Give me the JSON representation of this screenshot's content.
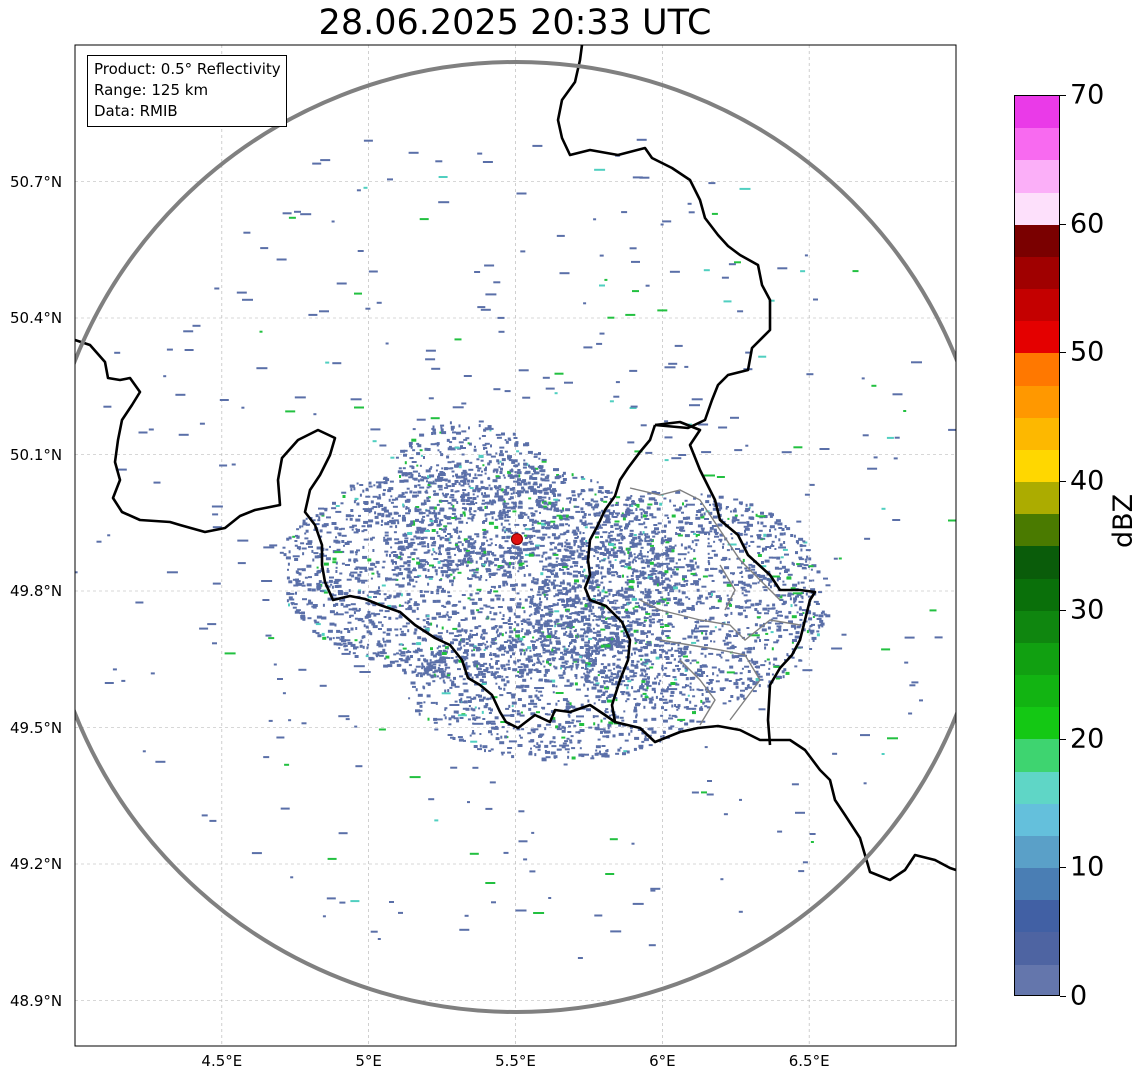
{
  "title": "28.06.2025 20:33 UTC",
  "info": {
    "product": "Product: 0.5° Reflectivity",
    "range": "Range: 125 km",
    "data": "Data: RMIB"
  },
  "map": {
    "lon_range": [
      4.0,
      7.0
    ],
    "lat_range": [
      48.8,
      51.0
    ],
    "lat_ticks": [
      {
        "value": 50.7,
        "label": "50.7°N"
      },
      {
        "value": 50.4,
        "label": "50.4°N"
      },
      {
        "value": 50.1,
        "label": "50.1°N"
      },
      {
        "value": 49.8,
        "label": "49.8°N"
      },
      {
        "value": 49.5,
        "label": "49.5°N"
      },
      {
        "value": 49.2,
        "label": "49.2°N"
      },
      {
        "value": 48.9,
        "label": "48.9°N"
      }
    ],
    "lon_ticks": [
      {
        "value": 4.5,
        "label": "4.5°E"
      },
      {
        "value": 5.0,
        "label": "5°E"
      },
      {
        "value": 5.5,
        "label": "5.5°E"
      },
      {
        "value": 6.0,
        "label": "6°E"
      },
      {
        "value": 6.5,
        "label": "6.5°E"
      }
    ],
    "radar_site": {
      "lon": 5.505,
      "lat": 49.914
    },
    "range_km": 125,
    "grid": true,
    "colors": {
      "range_ring": "#808080",
      "border": "#000000",
      "admin_border": "#808080",
      "site": "#e01010",
      "echo": "#5a6fa8",
      "echo_green": "#22c040",
      "echo_teal": "#50cfc0"
    }
  },
  "colorbar": {
    "label": "dBZ",
    "min": 0,
    "max": 70,
    "ticks": [
      {
        "value": 70,
        "label": "70"
      },
      {
        "value": 60,
        "label": "60"
      },
      {
        "value": 50,
        "label": "50"
      },
      {
        "value": 40,
        "label": "40"
      },
      {
        "value": 30,
        "label": "30"
      },
      {
        "value": 20,
        "label": "20"
      },
      {
        "value": 10,
        "label": "10"
      },
      {
        "value": 0,
        "label": "0"
      }
    ],
    "colors_top_to_bottom": [
      "#ea3ae8",
      "#f86af0",
      "#fbaff8",
      "#fde0fb",
      "#7a0000",
      "#a00000",
      "#c40000",
      "#e40000",
      "#ff7800",
      "#ff9800",
      "#fdb800",
      "#ffd700",
      "#acac00",
      "#4a7a00",
      "#0a5c0a",
      "#0a700a",
      "#0f860f",
      "#11a011",
      "#12b412",
      "#14c814",
      "#3ed470",
      "#5fd6c6",
      "#64c0dc",
      "#5aa0c8",
      "#4a7eb4",
      "#4160a4",
      "#4e64a2",
      "#6476ac"
    ]
  }
}
